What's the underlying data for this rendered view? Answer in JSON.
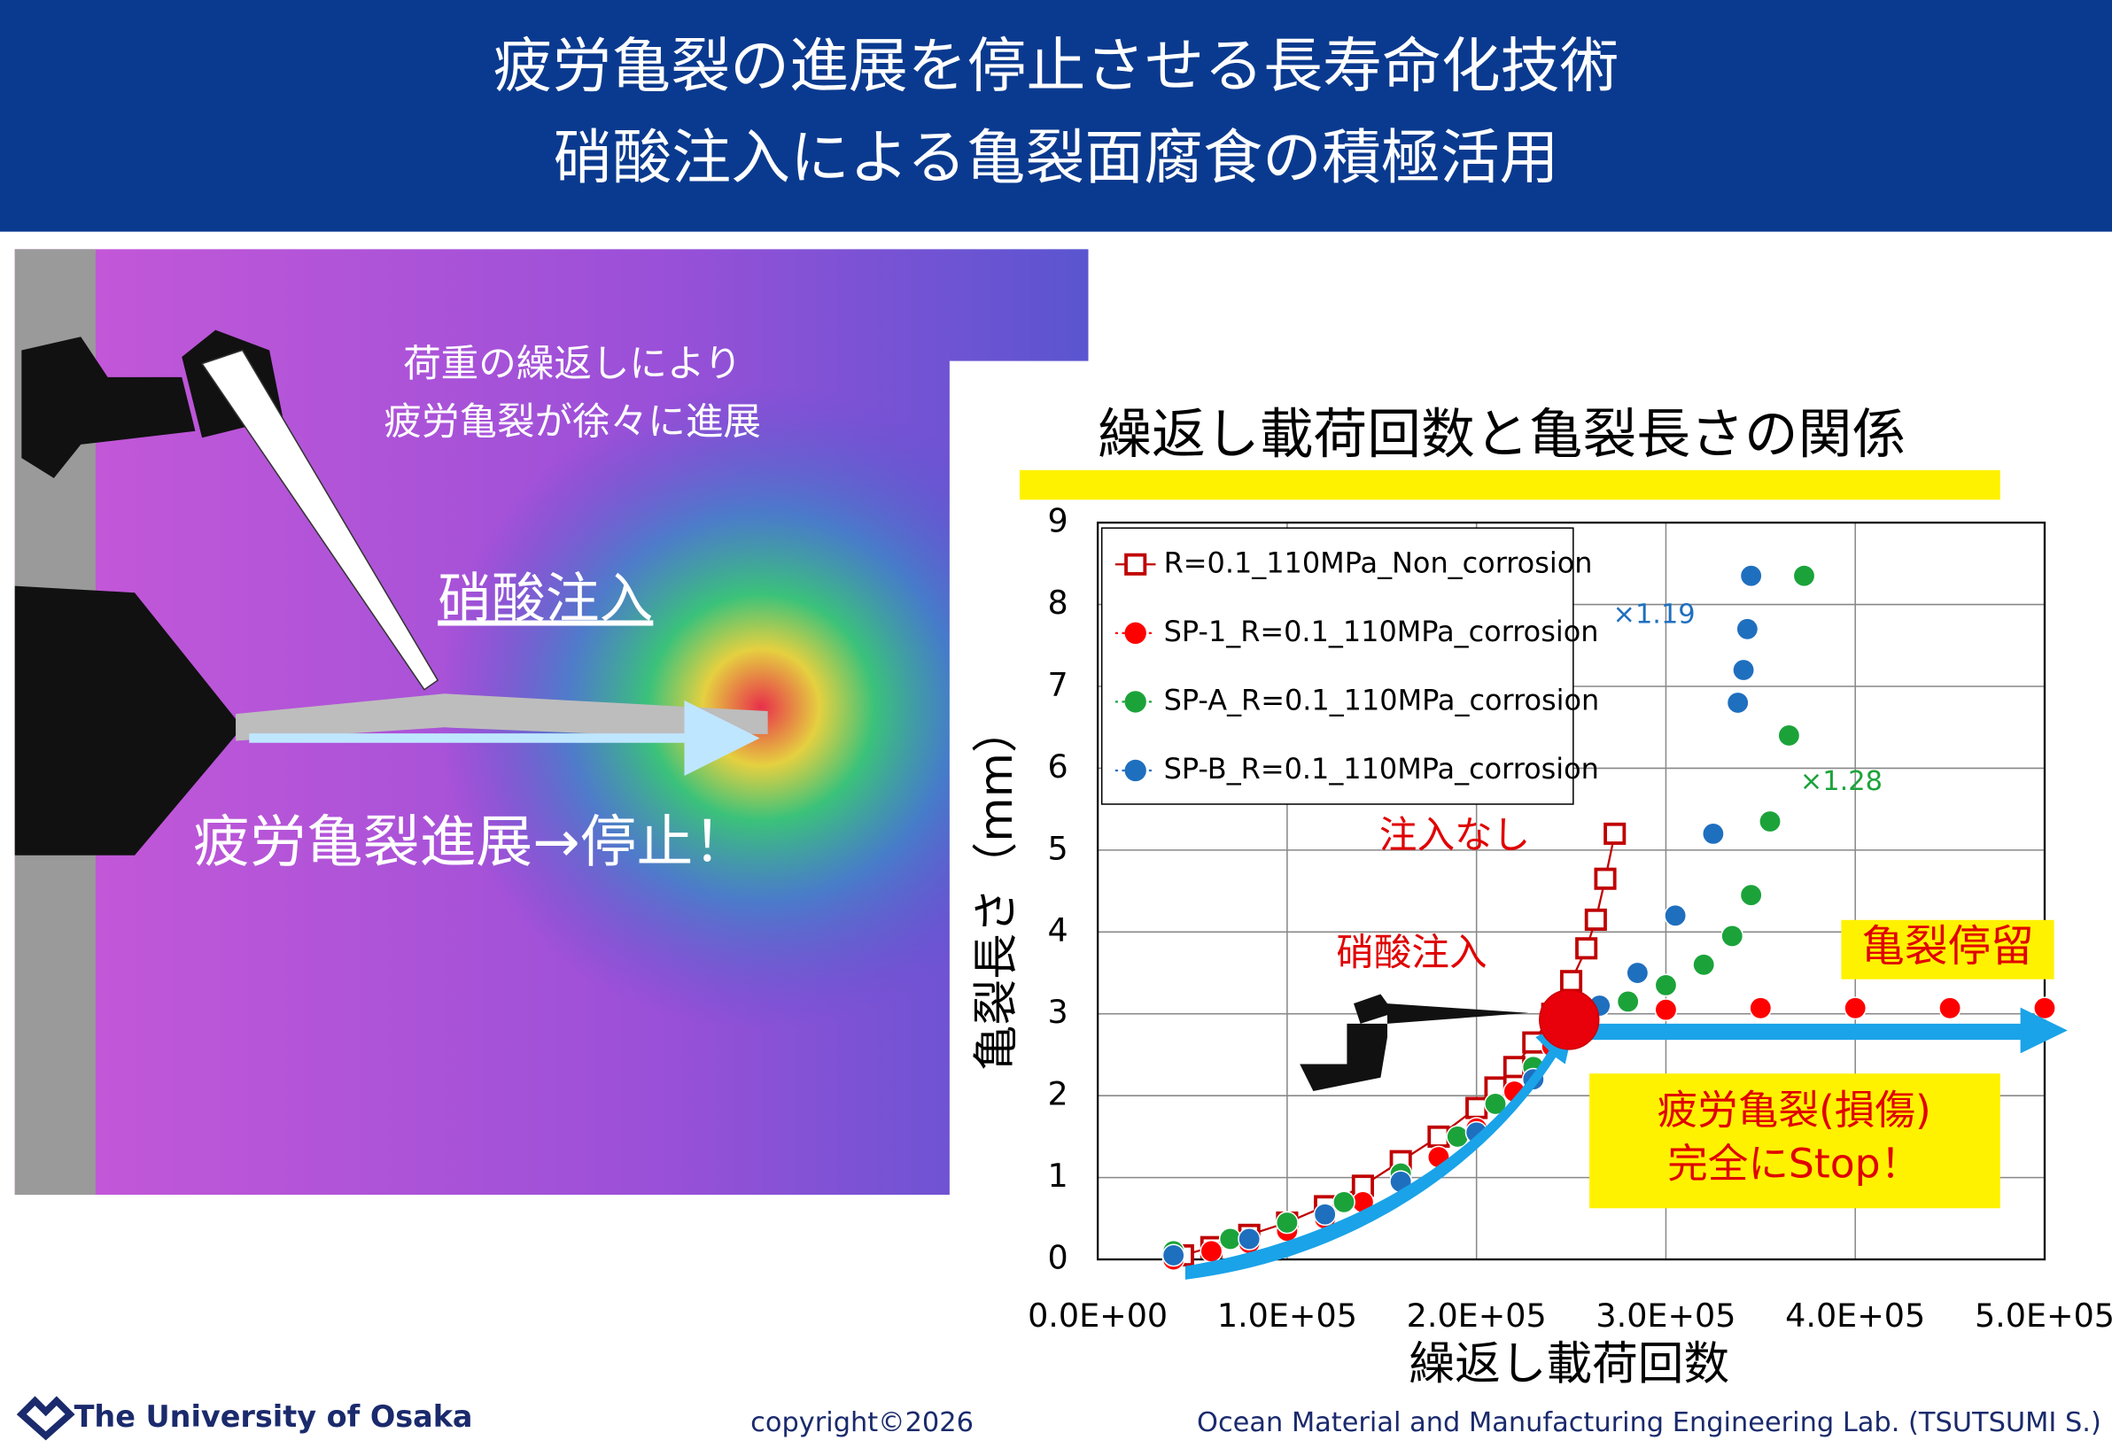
{
  "header": {
    "line1": "疲労亀裂の進展を停止させる長寿命化技術",
    "line2": "硝酸注入による亀裂面腐食の積極活用"
  },
  "photo": {
    "caption1": "荷重の繰返しにより",
    "caption2": "疲労亀裂が徐々に進展",
    "injection": "硝酸注入",
    "result": "疲労亀裂進展→停止！"
  },
  "chart_data": {
    "type": "scatter",
    "title": "繰返し載荷回数と亀裂長さの関係",
    "x_label": "繰返し載荷回数",
    "y_label": "亀裂長さ（mm）",
    "xlim": [
      0,
      500000
    ],
    "ylim": [
      0,
      9
    ],
    "xticks": [
      {
        "value": 0,
        "label": "0.0E+00"
      },
      {
        "value": 100000,
        "label": "1.0E+05"
      },
      {
        "value": 200000,
        "label": "2.0E+05"
      },
      {
        "value": 300000,
        "label": "3.0E+05"
      },
      {
        "value": 400000,
        "label": "4.0E+05"
      },
      {
        "value": 500000,
        "label": "5.0E+05"
      }
    ],
    "yticks": [
      0,
      1,
      2,
      3,
      4,
      5,
      6,
      7,
      8,
      9
    ],
    "grid": true,
    "legend": "top-left",
    "series": [
      {
        "name": "R=0.1_110MPa_Non_corrosion",
        "color": "#c00000",
        "marker": "square",
        "line": true,
        "x": [
          45000,
          60000,
          80000,
          100000,
          120000,
          140000,
          160000,
          180000,
          200000,
          210000,
          220000,
          230000,
          240000,
          250000,
          258000,
          263000,
          268000,
          273000
        ],
        "values": [
          0.05,
          0.15,
          0.3,
          0.45,
          0.65,
          0.9,
          1.2,
          1.5,
          1.85,
          2.1,
          2.35,
          2.65,
          3.0,
          3.4,
          3.8,
          4.15,
          4.65,
          5.2
        ]
      },
      {
        "name": "SP-1_R=0.1_110MPa_corrosion",
        "color": "#ff0000",
        "marker": "circle",
        "line": false,
        "x": [
          40000,
          60000,
          80000,
          100000,
          120000,
          140000,
          160000,
          180000,
          200000,
          220000,
          240000,
          300000,
          350000,
          400000,
          450000,
          500000
        ],
        "values": [
          0,
          0.1,
          0.2,
          0.35,
          0.5,
          0.7,
          0.95,
          1.25,
          1.6,
          2.05,
          2.6,
          3.05,
          3.07,
          3.07,
          3.07,
          3.07
        ]
      },
      {
        "name": "SP-A_R=0.1_110MPa_corrosion",
        "color": "#1ba33a",
        "marker": "circle",
        "line": false,
        "x": [
          40000,
          70000,
          100000,
          130000,
          160000,
          190000,
          210000,
          230000,
          250000,
          260000,
          280000,
          300000,
          320000,
          335000,
          345000,
          355000,
          365000,
          373000
        ],
        "values": [
          0.1,
          0.25,
          0.45,
          0.7,
          1.05,
          1.5,
          1.9,
          2.35,
          2.85,
          3.05,
          3.15,
          3.35,
          3.6,
          3.95,
          4.45,
          5.35,
          6.4,
          8.35
        ]
      },
      {
        "name": "SP-B_R=0.1_110MPa_corrosion",
        "color": "#1f6fbf",
        "marker": "circle",
        "line": false,
        "x": [
          40000,
          80000,
          120000,
          160000,
          200000,
          230000,
          250000,
          265000,
          285000,
          305000,
          325000,
          338000,
          341000,
          343000,
          345000
        ],
        "values": [
          0.05,
          0.25,
          0.55,
          0.95,
          1.55,
          2.2,
          2.8,
          3.1,
          3.5,
          4.2,
          5.2,
          6.8,
          7.2,
          7.7,
          8.35
        ]
      }
    ],
    "annotations": {
      "b_factor": "×1.19",
      "a_factor": "×1.28",
      "no_injection": "注入なし",
      "injection": "硝酸注入",
      "arrest": "亀裂停留",
      "stop1": "疲労亀裂(損傷)",
      "stop2": "完全にStop！"
    }
  },
  "footer": {
    "university": "The University of Osaka",
    "copyright": "copyright©2026",
    "lab": "Ocean Material and Manufacturing Engineering Lab. (TSUTSUMI S.)"
  }
}
